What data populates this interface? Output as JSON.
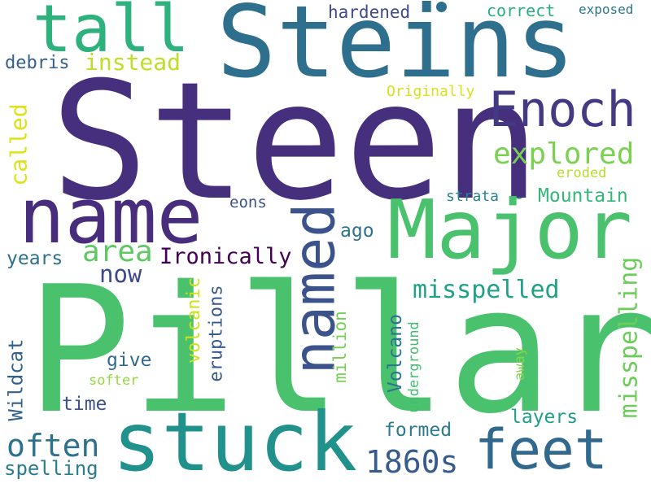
{
  "words": [
    {
      "key": "steen",
      "text": "Steen",
      "color": "#46307e"
    },
    {
      "key": "pillar",
      "text": "Pillar",
      "color": "#4ac16d"
    },
    {
      "key": "steins",
      "text": "Steins",
      "color": "#2e6f8e"
    },
    {
      "key": "stuck",
      "text": "stuck",
      "color": "#21918c"
    },
    {
      "key": "major",
      "text": "Major",
      "color": "#4ac16d"
    },
    {
      "key": "name",
      "text": "name",
      "color": "#472d7b"
    },
    {
      "key": "named",
      "text": "named",
      "color": "#3b528b"
    },
    {
      "key": "tall",
      "text": "tall",
      "color": "#2db27d"
    },
    {
      "key": "feet",
      "text": "feet",
      "color": "#31688e"
    },
    {
      "key": "enoch",
      "text": "Enoch",
      "color": "#443983"
    },
    {
      "key": "explored",
      "text": "explored",
      "color": "#7ad151"
    },
    {
      "key": "often",
      "text": "often",
      "color": "#2c728e"
    },
    {
      "key": "1860s",
      "text": "1860s",
      "color": "#365c8d"
    },
    {
      "key": "area",
      "text": "area",
      "color": "#5ec962"
    },
    {
      "key": "misspelled",
      "text": "misspelled",
      "color": "#1fa187"
    },
    {
      "key": "misspelling",
      "text": "misspelling",
      "color": "#6ccd5a"
    },
    {
      "key": "mountain",
      "text": "Mountain",
      "color": "#35b779"
    },
    {
      "key": "ironically",
      "text": "Ironically",
      "color": "#440154"
    },
    {
      "key": "now",
      "text": "now",
      "color": "#3e4989"
    },
    {
      "key": "instead",
      "text": "instead",
      "color": "#bddf26"
    },
    {
      "key": "called",
      "text": "called",
      "color": "#dde318"
    },
    {
      "key": "debris",
      "text": "debris",
      "color": "#355f8d"
    },
    {
      "key": "hardened",
      "text": "hardened",
      "color": "#3e4a89"
    },
    {
      "key": "correct",
      "text": "correct",
      "color": "#28ae80"
    },
    {
      "key": "exposed",
      "text": "exposed",
      "color": "#2a788e"
    },
    {
      "key": "originally",
      "text": "Originally",
      "color": "#d8e219"
    },
    {
      "key": "eroded",
      "text": "eroded",
      "color": "#b5de2b"
    },
    {
      "key": "strata",
      "text": "strata",
      "color": "#25848e"
    },
    {
      "key": "eons",
      "text": "eons",
      "color": "#3b528b"
    },
    {
      "key": "ago",
      "text": "ago",
      "color": "#2c728e"
    },
    {
      "key": "years",
      "text": "years",
      "color": "#2d708e"
    },
    {
      "key": "volcanic",
      "text": "volcanic",
      "color": "#d0e11c"
    },
    {
      "key": "eruptions",
      "text": "eruptions",
      "color": "#38598c"
    },
    {
      "key": "million",
      "text": "million",
      "color": "#75d054"
    },
    {
      "key": "volcano",
      "text": "Volcano",
      "color": "#2a768e"
    },
    {
      "key": "underground",
      "text": "underground",
      "color": "#42be71"
    },
    {
      "key": "away",
      "text": "away",
      "color": "#84d44b"
    },
    {
      "key": "give",
      "text": "give",
      "color": "#31688e"
    },
    {
      "key": "softer",
      "text": "softer",
      "color": "#95d840"
    },
    {
      "key": "wildcat",
      "text": "Wildcat",
      "color": "#33638d"
    },
    {
      "key": "time",
      "text": "time",
      "color": "#3b528b"
    },
    {
      "key": "formed",
      "text": "formed",
      "color": "#297b8e"
    },
    {
      "key": "layers",
      "text": "layers",
      "color": "#1f9e89"
    },
    {
      "key": "spelling",
      "text": "spelling",
      "color": "#287d8e"
    }
  ]
}
